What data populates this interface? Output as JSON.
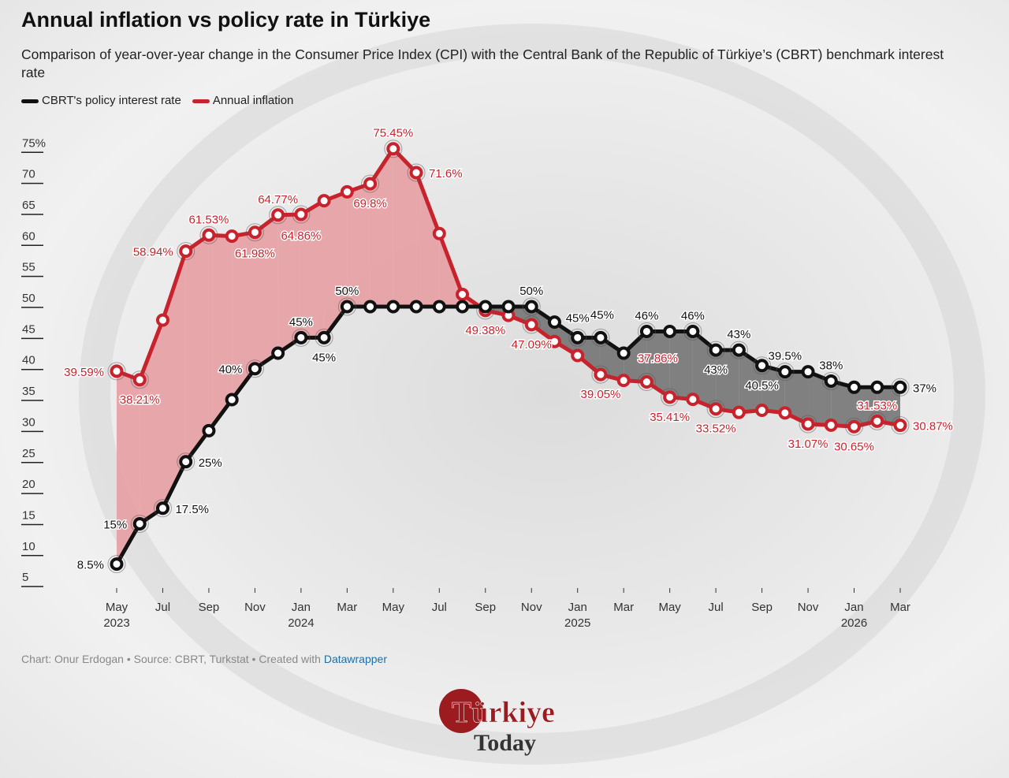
{
  "title": "Annual inflation vs policy rate in Türkiye",
  "subtitle": "Comparison of year-over-year change in the Consumer Price Index (CPI) with the Central Bank of the Republic of Türkiye’s (CBRT) benchmark interest rate",
  "footer": {
    "text": "Chart: Onur Erdogan • Source: CBRT, Turkstat • Created with ",
    "link": "Datawrapper"
  },
  "logo": {
    "line1": "Türkiye",
    "line2": "Today"
  },
  "colors": {
    "rate": "#111111",
    "inflation": "#c8232c",
    "inflation_fill": "#e59a9f",
    "rate_fill": "#6e6e6e"
  },
  "chart_data": {
    "type": "line",
    "ylim": [
      5,
      75
    ],
    "yticks": [
      "75%",
      "70",
      "65",
      "60",
      "55",
      "50",
      "45",
      "40",
      "35",
      "30",
      "25",
      "20",
      "15",
      "10",
      "5"
    ],
    "ytick_values": [
      75,
      70,
      65,
      60,
      55,
      50,
      45,
      40,
      35,
      30,
      25,
      20,
      15,
      10,
      5
    ],
    "x": [
      "May 2023",
      "Jun 2023",
      "Jul 2023",
      "Aug 2023",
      "Sep 2023",
      "Oct 2023",
      "Nov 2023",
      "Dec 2023",
      "Jan 2024",
      "Feb 2024",
      "Mar 2024",
      "Apr 2024",
      "May 2024",
      "Jun 2024",
      "Jul 2024",
      "Aug 2024",
      "Sep 2024",
      "Oct 2024",
      "Nov 2024",
      "Dec 2024",
      "Jan 2025",
      "Feb 2025",
      "Mar 2025",
      "Apr 2025",
      "May 2025",
      "Jun 2025",
      "Jul 2025",
      "Aug 2025",
      "Sep 2025",
      "Oct 2025",
      "Nov 2025",
      "Dec 2025",
      "Jan 2026",
      "Feb 2026",
      "Mar 2026"
    ],
    "xticks": [
      {
        "m": "May",
        "y": "2023"
      },
      {
        "m": "Jul",
        "y": ""
      },
      {
        "m": "Sep",
        "y": ""
      },
      {
        "m": "Nov",
        "y": ""
      },
      {
        "m": "Jan",
        "y": "2024"
      },
      {
        "m": "Mar",
        "y": ""
      },
      {
        "m": "May",
        "y": ""
      },
      {
        "m": "Jul",
        "y": ""
      },
      {
        "m": "Sep",
        "y": ""
      },
      {
        "m": "Nov",
        "y": ""
      },
      {
        "m": "Jan",
        "y": "2025"
      },
      {
        "m": "Mar",
        "y": ""
      },
      {
        "m": "May",
        "y": ""
      },
      {
        "m": "Jul",
        "y": ""
      },
      {
        "m": "Sep",
        "y": ""
      },
      {
        "m": "Nov",
        "y": ""
      },
      {
        "m": "Jan",
        "y": "2026"
      },
      {
        "m": "Mar",
        "y": ""
      }
    ],
    "series": [
      {
        "name": "CBRT's policy interest rate",
        "values": [
          8.5,
          15,
          17.5,
          25,
          30,
          35,
          40,
          42.5,
          45,
          45,
          50,
          50,
          50,
          50,
          50,
          50,
          50,
          50,
          50,
          47.5,
          45,
          45,
          42.5,
          46,
          46,
          46,
          43,
          43,
          40.5,
          39.5,
          39.5,
          38,
          37,
          37,
          37
        ],
        "labels": [
          "8.5%",
          "15%",
          "17.5%",
          "25%",
          null,
          null,
          "40%",
          null,
          "45%",
          "45%",
          "50%",
          null,
          null,
          null,
          null,
          null,
          null,
          null,
          "50%",
          null,
          "45%",
          "45%",
          null,
          "46%",
          null,
          "46%",
          "43%",
          "43%",
          "40.5%",
          "39.5%",
          null,
          "38%",
          null,
          null,
          "37%"
        ]
      },
      {
        "name": "Annual inflation",
        "values": [
          39.59,
          38.21,
          47.83,
          58.94,
          61.53,
          61.36,
          61.98,
          64.77,
          64.86,
          67.07,
          68.5,
          69.8,
          75.45,
          71.6,
          61.78,
          51.97,
          49.38,
          48.58,
          47.09,
          44.38,
          42.12,
          39.05,
          38.1,
          37.86,
          35.41,
          35.05,
          33.52,
          32.95,
          33.29,
          32.87,
          31.07,
          30.89,
          30.65,
          31.53,
          30.87
        ],
        "labels": [
          "39.59%",
          "38.21%",
          null,
          "58.94%",
          "61.53%",
          null,
          "61.98%",
          "64.77%",
          "64.86%",
          null,
          null,
          "69.8%",
          "75.45%",
          "71.6%",
          null,
          null,
          "49.38%",
          null,
          "47.09%",
          null,
          null,
          "39.05%",
          null,
          "37.86%",
          "35.41%",
          null,
          "33.52%",
          null,
          null,
          null,
          "31.07%",
          null,
          "30.65%",
          "31.53%",
          "30.87%"
        ]
      }
    ]
  }
}
